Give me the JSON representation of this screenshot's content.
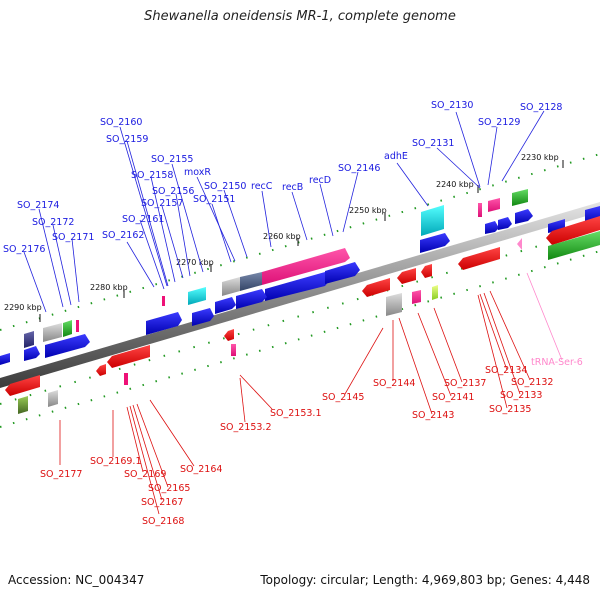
{
  "title": "Shewanella oneidensis MR-1, complete genome",
  "footer": {
    "accession": "Accession: NC_004347",
    "summary": "Topology: circular; Length: 4,969,803 bp; Genes: 4,448"
  },
  "colors": {
    "forward_gene": "#1010dd",
    "reverse_gene": "#ee1111",
    "trna": "#ff88cc",
    "backbone": "#888888",
    "tick": "#229922"
  },
  "kbp_labels": [
    "2230 kbp",
    "2240 kbp",
    "2250 kbp",
    "2260 kbp",
    "2270 kbp",
    "2280 kbp",
    "2290 kbp"
  ],
  "top_labels": [
    "SO_2130",
    "SO_2128",
    "SO_2129",
    "SO_2131",
    "adhE",
    "SO_2146",
    "recD",
    "recB",
    "recC",
    "SO_2150",
    "moxR",
    "SO_2151",
    "SO_2155",
    "SO_2156",
    "SO_2157",
    "SO_2160",
    "SO_2159",
    "SO_2158",
    "SO_2161",
    "SO_2162",
    "SO_2174",
    "SO_2172",
    "SO_2171",
    "SO_2176"
  ],
  "bottom_labels": [
    "tRNA-Ser-6",
    "SO_2134",
    "SO_2132",
    "SO_2133",
    "SO_2135",
    "SO_2137",
    "SO_2141",
    "SO_2143",
    "SO_2144",
    "SO_2145",
    "SO_2153.1",
    "SO_2153.2",
    "SO_2164",
    "SO_2165",
    "SO_2167",
    "SO_2168",
    "SO_2169",
    "SO_2169.1",
    "SO_2177"
  ]
}
